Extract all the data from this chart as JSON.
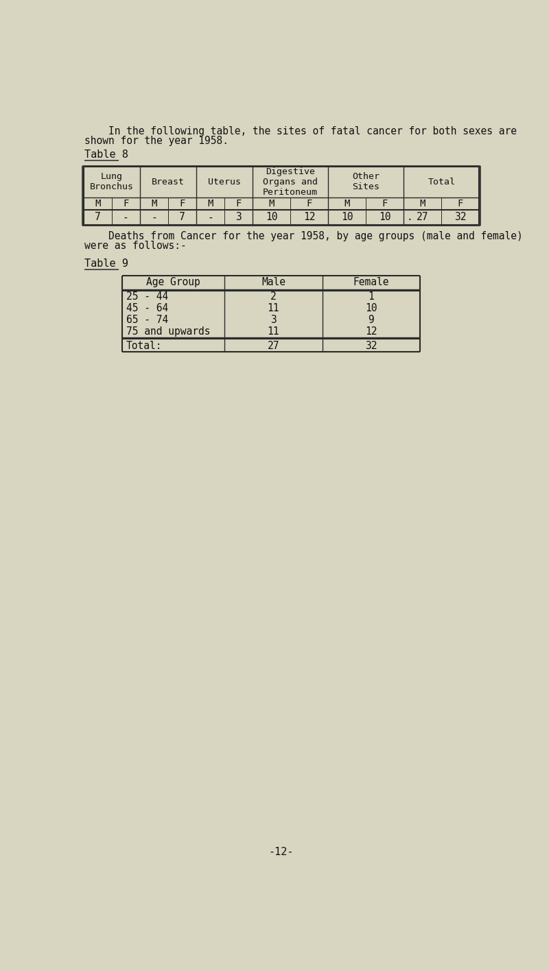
{
  "bg_color": "#d8d5c0",
  "text_color": "#111111",
  "intro_line1": "    In the following table, the sites of fatal cancer for both sexes are",
  "intro_line2": "shown for the year 1958.",
  "table8_label": "Table 8",
  "table8_group_labels": [
    "Lung\nBronchus",
    "Breast",
    "Uterus",
    "Digestive\nOrgans and\nPeritoneum",
    "Other\nSites",
    "Total"
  ],
  "table8_mf": [
    "M",
    "F",
    "M",
    "F",
    "M",
    "F",
    "M",
    "F",
    "M",
    "F",
    "M",
    "F"
  ],
  "table8_data": [
    "7",
    "-",
    "-",
    "7",
    "-",
    "3",
    "10",
    "12",
    "10",
    "10",
    "27",
    "32"
  ],
  "between_line1": "    Deaths from Cancer for the year 1958, by age groups (male and female)",
  "between_line2": "were as follows:-",
  "table9_label": "Table 9",
  "table9_headers": [
    "Age Group",
    "Male",
    "Female"
  ],
  "table9_rows": [
    [
      "25 - 44",
      "2",
      "1"
    ],
    [
      "45 - 64",
      "11",
      "10"
    ],
    [
      "65 - 74",
      "3",
      "9"
    ],
    [
      "75 and upwards",
      "11",
      "12"
    ]
  ],
  "table9_total": [
    "Total:",
    "27",
    "32"
  ],
  "footer": "-12-"
}
